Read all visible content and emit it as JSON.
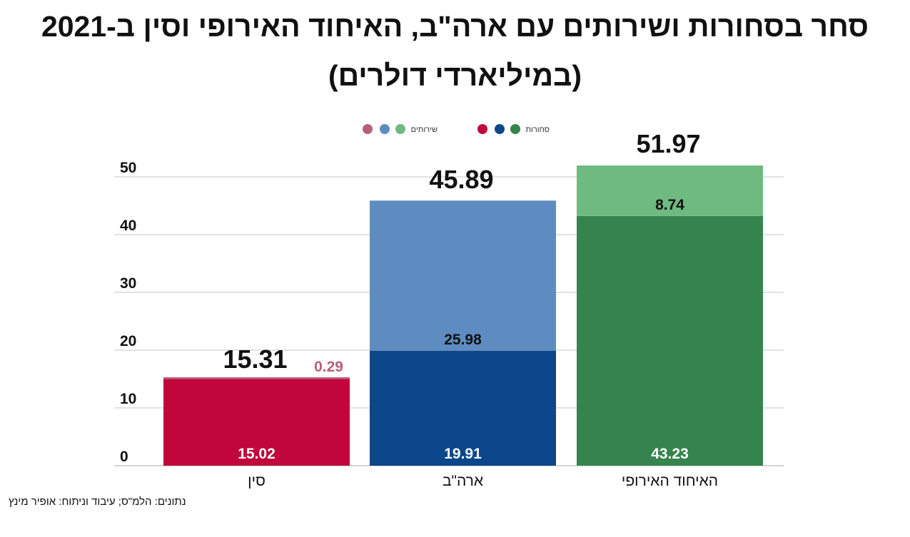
{
  "title_line1": "סחר בסחורות ושירותים עם ארה\"ב, האיחוד האירופי וסין ב-2021",
  "title_line2": "(במיליארדי דולרים)",
  "source": "נתונים: הלמ\"ס; עיבוד וניתוח: אופיר מינץ",
  "chart_data": {
    "type": "bar",
    "stacked": true,
    "categories": [
      "סין",
      "ארה\"ב",
      "האיחוד האירופי"
    ],
    "series": [
      {
        "name": "סחורות",
        "values": [
          15.02,
          19.91,
          43.23
        ],
        "colors": [
          "#c0063a",
          "#0b478a",
          "#35844d"
        ],
        "label_color": "#ffffff"
      },
      {
        "name": "שירותים",
        "values": [
          0.29,
          25.98,
          8.74
        ],
        "colors": [
          "#b7607a",
          "#5e8cc0",
          "#6fba81"
        ],
        "label_color": "#111111"
      }
    ],
    "totals": [
      15.31,
      45.89,
      51.97
    ],
    "yticks": [
      0,
      10,
      20,
      30,
      40,
      50
    ],
    "ylim": [
      0,
      55
    ],
    "grid": true,
    "legend_position": "top"
  }
}
